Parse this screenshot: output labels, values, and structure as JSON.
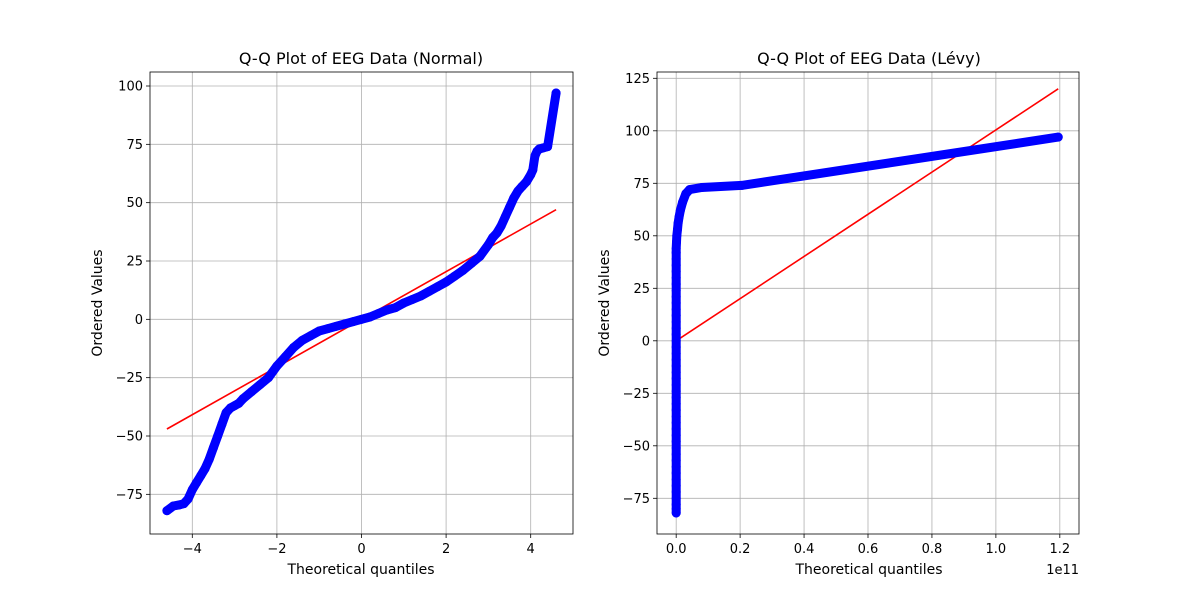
{
  "chart_data": [
    {
      "type": "scatter",
      "title": "Q-Q Plot of EEG Data (Normal)",
      "xlabel": "Theoretical quantiles",
      "ylabel": "Ordered Values",
      "xlim": [
        -5.0,
        5.0
      ],
      "ylim": [
        -92,
        106
      ],
      "xticks": [
        -4,
        -2,
        0,
        2,
        4
      ],
      "xtick_labels": [
        "−4",
        "−2",
        "0",
        "2",
        "4"
      ],
      "yticks": [
        -75,
        -50,
        -25,
        0,
        25,
        50,
        75,
        100
      ],
      "ytick_labels": [
        "−75",
        "−50",
        "−25",
        "0",
        "25",
        "50",
        "75",
        "100"
      ],
      "offset_text": "",
      "grid": true,
      "colors": {
        "points": "#0000ff",
        "fit_line": "#ff0000"
      },
      "series": [
        {
          "kind": "points",
          "x": [
            -4.6,
            -4.45,
            -4.3,
            -4.2,
            -4.1,
            -4.0,
            -3.9,
            -3.8,
            -3.7,
            -3.6,
            -3.5,
            -3.4,
            -3.3,
            -3.2,
            -3.1,
            -3.0,
            -2.9,
            -2.8,
            -2.6,
            -2.4,
            -2.2,
            -2.0,
            -1.8,
            -1.6,
            -1.4,
            -1.2,
            -1.0,
            -0.8,
            -0.6,
            -0.4,
            -0.2,
            0.0,
            0.2,
            0.4,
            0.6,
            0.8,
            1.0,
            1.2,
            1.4,
            1.6,
            1.8,
            2.0,
            2.2,
            2.4,
            2.6,
            2.8,
            3.0,
            3.1,
            3.2,
            3.3,
            3.4,
            3.5,
            3.6,
            3.7,
            3.8,
            3.9,
            4.0,
            4.05,
            4.1,
            4.15,
            4.2,
            4.3,
            4.4,
            4.6
          ],
          "y": [
            -82,
            -80,
            -79.5,
            -79,
            -77,
            -73,
            -70,
            -67,
            -64,
            -60,
            -55,
            -50,
            -45,
            -40,
            -38,
            -37,
            -36,
            -34,
            -31,
            -28,
            -25,
            -20,
            -16,
            -12,
            -9,
            -7,
            -5,
            -4,
            -3,
            -2,
            -1,
            0,
            1,
            2.5,
            4,
            5,
            7,
            8.5,
            10,
            12,
            14,
            16,
            18.5,
            21,
            24,
            27,
            32,
            35,
            37,
            40,
            44,
            48,
            52,
            55,
            57,
            59,
            62,
            64,
            70,
            72,
            73,
            73.5,
            74,
            97
          ]
        },
        {
          "kind": "line",
          "x": [
            -4.6,
            4.6
          ],
          "y": [
            -47,
            47
          ]
        }
      ]
    },
    {
      "type": "scatter",
      "title": "Q-Q Plot of EEG Data (Lévy)",
      "xlabel": "Theoretical quantiles",
      "ylabel": "Ordered Values",
      "xlim": [
        -0.06,
        1.26
      ],
      "ylim": [
        -92,
        128
      ],
      "xticks": [
        0.0,
        0.2,
        0.4,
        0.6,
        0.8,
        1.0,
        1.2
      ],
      "xtick_labels": [
        "0.0",
        "0.2",
        "0.4",
        "0.6",
        "0.8",
        "1.0",
        "1.2"
      ],
      "yticks": [
        -75,
        -50,
        -25,
        0,
        25,
        50,
        75,
        100,
        125
      ],
      "ytick_labels": [
        "−75",
        "−50",
        "−25",
        "0",
        "25",
        "50",
        "75",
        "100",
        "125"
      ],
      "offset_text": "1e11",
      "grid": true,
      "colors": {
        "points": "#0000ff",
        "fit_line": "#ff0000"
      },
      "series": [
        {
          "kind": "points",
          "x": [
            0.0,
            0.0,
            0.0,
            0.0,
            0.0,
            0.0,
            0.0,
            0.0,
            0.0,
            0.0,
            0.0,
            0.0,
            0.0,
            0.0,
            0.0,
            0.0,
            0.0,
            0.0,
            0.0,
            0.0,
            0.0,
            0.0,
            0.0,
            0.0,
            0.0,
            0.0,
            0.0,
            0.0,
            0.0,
            0.0,
            0.0,
            0.0,
            0.0,
            0.0,
            0.0,
            0.0,
            0.0,
            0.0,
            0.0,
            0.0,
            0.0,
            0.0,
            0.0,
            0.0,
            0.001,
            0.002,
            0.004,
            0.006,
            0.009,
            0.013,
            0.02,
            0.03,
            0.042,
            0.08,
            0.205,
            1.195
          ],
          "y": [
            -82,
            -80,
            -78,
            -75,
            -72,
            -69,
            -66,
            -63,
            -60,
            -57,
            -54,
            -51,
            -48,
            -45,
            -42,
            -39,
            -36,
            -33,
            -30,
            -27,
            -24,
            -21,
            -18,
            -15,
            -12,
            -9,
            -6,
            -3,
            0,
            3,
            6,
            9,
            12,
            15,
            18,
            21,
            24,
            27,
            30,
            33,
            36,
            39,
            42,
            44,
            47,
            50,
            53,
            56,
            59,
            62,
            66,
            70,
            72,
            73,
            74,
            97
          ]
        },
        {
          "kind": "line",
          "x": [
            0.0,
            1.195
          ],
          "y": [
            0,
            120
          ]
        }
      ]
    }
  ]
}
